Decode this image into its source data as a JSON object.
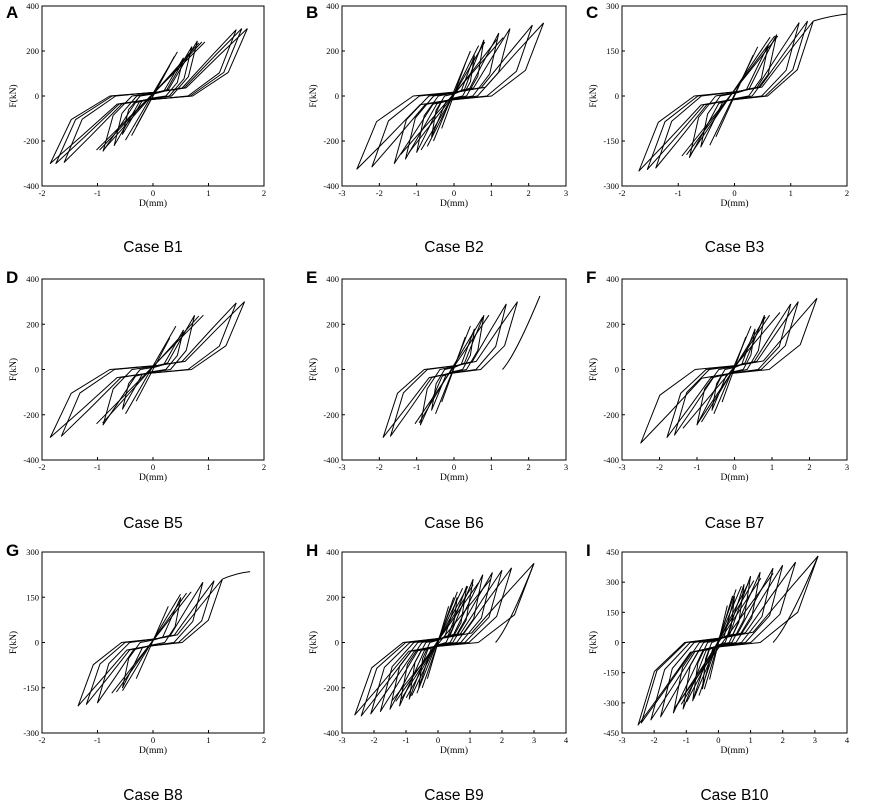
{
  "figure": {
    "description_label": "Hysteresis curves F(kN) vs D(mm)"
  },
  "chart_data": [
    {
      "panel": "A",
      "case": "Case B1",
      "type": "line",
      "xlabel": "D(mm)",
      "ylabel": "F(kN)",
      "xlim": [
        -2,
        2
      ],
      "ylim": [
        -400,
        400
      ],
      "xticks": [
        -2,
        -1,
        0,
        1,
        2
      ],
      "yticks": [
        -400,
        -200,
        0,
        200,
        400
      ],
      "peaks": [
        [
          0.55,
          170
        ],
        [
          0.7,
          220
        ],
        [
          0.8,
          245
        ],
        [
          1.5,
          295
        ],
        [
          1.6,
          300
        ],
        [
          1.7,
          300
        ]
      ],
      "valleys": [
        [
          -0.55,
          -170
        ],
        [
          -0.7,
          -220
        ],
        [
          -0.9,
          -245
        ],
        [
          -1.6,
          -295
        ],
        [
          -1.75,
          -300
        ],
        [
          -1.85,
          -300
        ]
      ],
      "final_point": null
    },
    {
      "panel": "B",
      "case": "Case B2",
      "type": "line",
      "xlabel": "D(mm)",
      "ylabel": "F(kN)",
      "xlim": [
        -3,
        3
      ],
      "ylim": [
        -400,
        400
      ],
      "xticks": [
        -3,
        -2,
        -1,
        0,
        1,
        2,
        3
      ],
      "yticks": [
        -400,
        -200,
        0,
        200,
        400
      ],
      "peaks": [
        [
          0.55,
          180
        ],
        [
          0.8,
          250
        ],
        [
          1.2,
          280
        ],
        [
          1.5,
          300
        ],
        [
          2.1,
          315
        ],
        [
          2.4,
          325
        ]
      ],
      "valleys": [
        [
          -0.6,
          -180
        ],
        [
          -1.0,
          -250
        ],
        [
          -1.3,
          -280
        ],
        [
          -1.6,
          -300
        ],
        [
          -2.2,
          -315
        ],
        [
          -2.6,
          -325
        ]
      ],
      "final_point": null
    },
    {
      "panel": "C",
      "case": "Case B3",
      "type": "line",
      "xlabel": "D(mm)",
      "ylabel": "F(kN)",
      "xlim": [
        -2,
        2
      ],
      "ylim": [
        -300,
        300
      ],
      "xticks": [
        -2,
        -1,
        0,
        1,
        2
      ],
      "yticks": [
        -300,
        -150,
        0,
        150,
        300
      ],
      "peaks": [
        [
          0.6,
          170
        ],
        [
          0.75,
          205
        ],
        [
          1.15,
          245
        ],
        [
          1.3,
          250
        ],
        [
          1.4,
          250
        ]
      ],
      "valleys": [
        [
          -0.6,
          -170
        ],
        [
          -0.8,
          -205
        ],
        [
          -1.4,
          -240
        ],
        [
          -1.55,
          -245
        ],
        [
          -1.7,
          -250
        ]
      ],
      "final_point": [
        2.1,
        275
      ]
    },
    {
      "panel": "D",
      "case": "Case B5",
      "type": "line",
      "xlabel": "D(mm)",
      "ylabel": "F(kN)",
      "xlim": [
        -2,
        2
      ],
      "ylim": [
        -400,
        400
      ],
      "xticks": [
        -2,
        -1,
        0,
        1,
        2
      ],
      "yticks": [
        -400,
        -200,
        0,
        200,
        400
      ],
      "peaks": [
        [
          0.55,
          175
        ],
        [
          0.75,
          240
        ],
        [
          1.5,
          295
        ],
        [
          1.65,
          300
        ]
      ],
      "valleys": [
        [
          -0.55,
          -175
        ],
        [
          -0.9,
          -245
        ],
        [
          -1.65,
          -295
        ],
        [
          -1.85,
          -300
        ]
      ],
      "final_point": null
    },
    {
      "panel": "E",
      "case": "Case B6",
      "type": "line",
      "xlabel": "D(mm)",
      "ylabel": "F(kN)",
      "xlim": [
        -3,
        3
      ],
      "ylim": [
        -400,
        400
      ],
      "xticks": [
        -3,
        -2,
        -1,
        0,
        1,
        2,
        3
      ],
      "yticks": [
        -400,
        -200,
        0,
        200,
        400
      ],
      "peaks": [
        [
          0.55,
          180
        ],
        [
          0.8,
          240
        ],
        [
          1.4,
          290
        ],
        [
          1.7,
          300
        ],
        [
          2.3,
          325
        ]
      ],
      "valleys": [
        [
          -0.6,
          -180
        ],
        [
          -0.9,
          -245
        ],
        [
          -1.7,
          -295
        ],
        [
          -1.9,
          -300
        ]
      ],
      "final_point": [
        1.3,
        0
      ]
    },
    {
      "panel": "F",
      "case": "Case B7",
      "type": "line",
      "xlabel": "D(mm)",
      "ylabel": "F(kN)",
      "xlim": [
        -3,
        3
      ],
      "ylim": [
        -400,
        400
      ],
      "xticks": [
        -3,
        -2,
        -1,
        0,
        1,
        2,
        3
      ],
      "yticks": [
        -400,
        -200,
        0,
        200,
        400
      ],
      "peaks": [
        [
          0.55,
          180
        ],
        [
          0.8,
          240
        ],
        [
          1.5,
          290
        ],
        [
          1.7,
          300
        ],
        [
          2.2,
          315
        ],
        [
          2.5,
          325
        ]
      ],
      "valleys": [
        [
          -0.6,
          -180
        ],
        [
          -1.0,
          -245
        ],
        [
          -1.6,
          -290
        ],
        [
          -1.8,
          -300
        ],
        [
          -2.5,
          -325
        ]
      ],
      "final_point": null
    },
    {
      "panel": "G",
      "case": "Case B8",
      "type": "line",
      "xlabel": "D(mm)",
      "ylabel": "F(kN)",
      "xlim": [
        -2,
        2
      ],
      "ylim": [
        -300,
        300
      ],
      "xticks": [
        -2,
        -1,
        0,
        1,
        2
      ],
      "yticks": [
        -300,
        -150,
        0,
        150,
        300
      ],
      "peaks": [
        [
          0.5,
          150
        ],
        [
          0.9,
          200
        ],
        [
          1.1,
          205
        ],
        [
          1.25,
          210
        ]
      ],
      "valleys": [
        [
          -0.55,
          -150
        ],
        [
          -1.0,
          -200
        ],
        [
          -1.2,
          -205
        ],
        [
          -1.35,
          -210
        ]
      ],
      "final_point": [
        1.75,
        235
      ]
    },
    {
      "panel": "H",
      "case": "Case B9",
      "type": "line",
      "xlabel": "D(mm)",
      "ylabel": "F(kN)",
      "xlim": [
        -3,
        4
      ],
      "ylim": [
        -400,
        400
      ],
      "xticks": [
        -3,
        -2,
        -1,
        0,
        1,
        2,
        3,
        4
      ],
      "yticks": [
        -400,
        -200,
        0,
        200,
        400
      ],
      "peaks": [
        [
          0.6,
          200
        ],
        [
          0.9,
          250
        ],
        [
          1.1,
          280
        ],
        [
          1.4,
          300
        ],
        [
          1.7,
          310
        ],
        [
          2.0,
          320
        ],
        [
          2.3,
          330
        ],
        [
          3.0,
          350
        ]
      ],
      "valleys": [
        [
          -0.6,
          -200
        ],
        [
          -0.9,
          -250
        ],
        [
          -1.2,
          -280
        ],
        [
          -1.5,
          -295
        ],
        [
          -1.8,
          -305
        ],
        [
          -2.1,
          -315
        ],
        [
          -2.4,
          -325
        ],
        [
          -2.6,
          -320
        ]
      ],
      "final_point": [
        1.8,
        0
      ]
    },
    {
      "panel": "I",
      "case": "Case B10",
      "type": "line",
      "xlabel": "D(mm)",
      "ylabel": "F(kN)",
      "xlim": [
        -3,
        4
      ],
      "ylim": [
        -450,
        450
      ],
      "xticks": [
        -3,
        -2,
        -1,
        0,
        1,
        2,
        3,
        4
      ],
      "yticks": [
        -450,
        -300,
        -150,
        0,
        150,
        300,
        450
      ],
      "peaks": [
        [
          0.5,
          230
        ],
        [
          0.8,
          290
        ],
        [
          1.0,
          330
        ],
        [
          1.3,
          350
        ],
        [
          1.7,
          370
        ],
        [
          2.0,
          385
        ],
        [
          2.4,
          400
        ],
        [
          3.1,
          430
        ]
      ],
      "valleys": [
        [
          -0.5,
          -230
        ],
        [
          -0.8,
          -290
        ],
        [
          -1.1,
          -330
        ],
        [
          -1.4,
          -350
        ],
        [
          -1.8,
          -370
        ],
        [
          -2.1,
          -385
        ],
        [
          -2.4,
          -400
        ],
        [
          -2.5,
          -410
        ]
      ],
      "final_point": [
        1.7,
        0
      ]
    }
  ]
}
